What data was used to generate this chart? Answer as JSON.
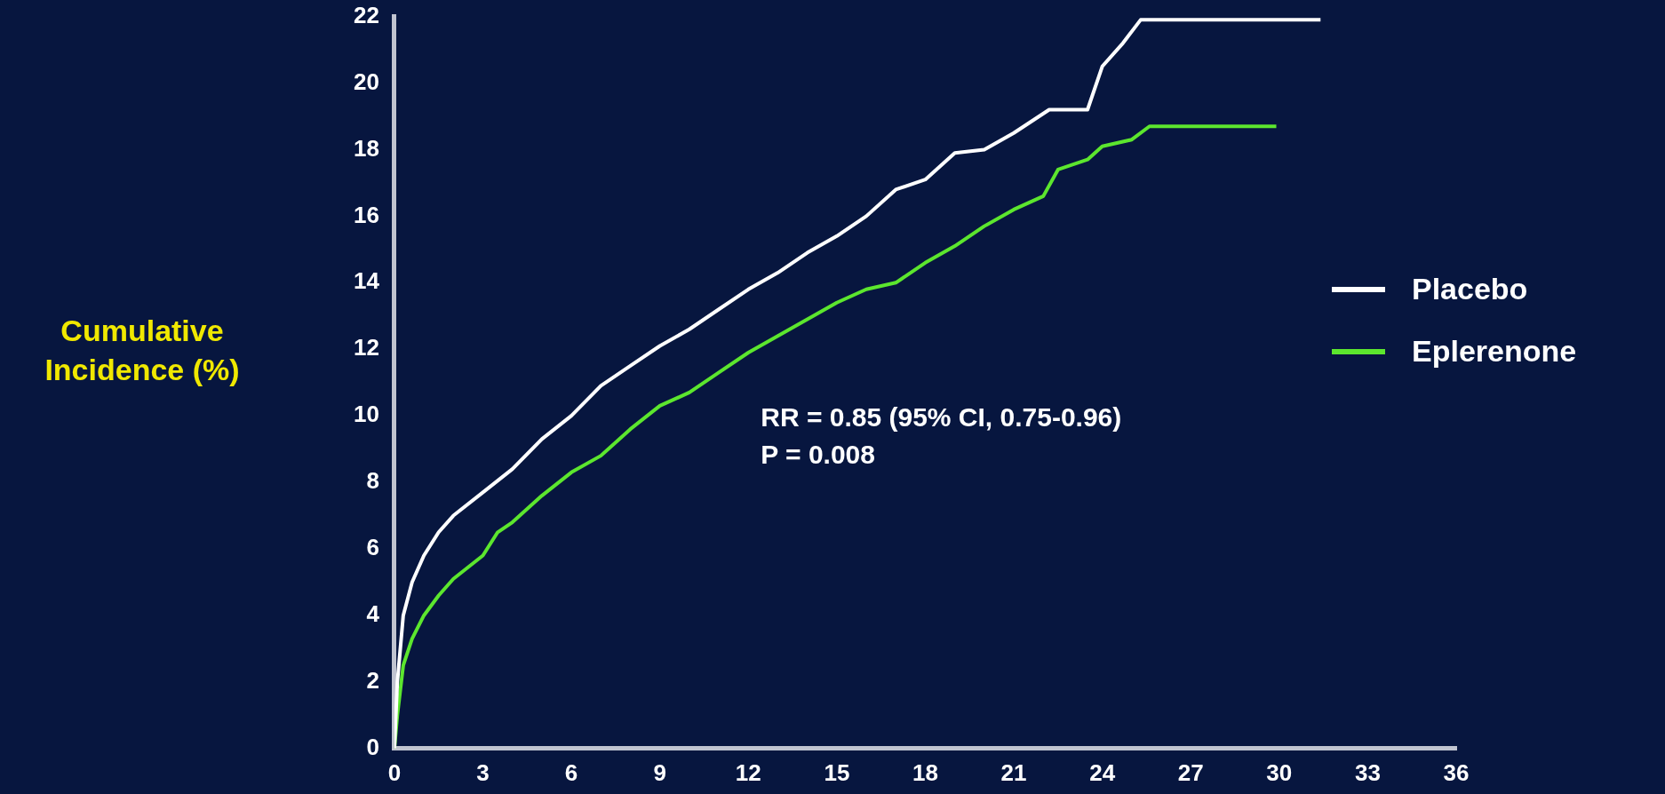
{
  "chart_data": {
    "type": "line",
    "ylabel": "Cumulative\nIncidence (%)",
    "xlim": [
      0,
      36
    ],
    "xticks": [
      0,
      3,
      6,
      9,
      12,
      15,
      18,
      21,
      24,
      27,
      30,
      33,
      36
    ],
    "ylim": [
      0,
      22
    ],
    "yticks": [
      0,
      2,
      4,
      6,
      8,
      10,
      12,
      14,
      16,
      18,
      20,
      22
    ],
    "grid": false,
    "legend": "right",
    "marker": "none",
    "line_style": "solid",
    "annotations": [
      "RR = 0.85 (95% CI, 0.75-0.96)",
      "P = 0.008"
    ],
    "series": [
      {
        "name": "Placebo",
        "color": "#ffffff",
        "x": [
          0,
          0.1,
          0.3,
          0.6,
          1,
          1.5,
          2,
          3,
          4,
          5,
          6,
          7,
          8,
          9,
          10,
          11,
          12,
          13,
          14,
          15,
          16,
          17,
          18,
          19,
          20,
          21,
          22.2,
          23.5,
          24,
          24.7,
          25.3,
          31.4
        ],
        "values": [
          0,
          2,
          4,
          5,
          5.8,
          6.5,
          7,
          7.7,
          8.4,
          9.3,
          10,
          10.9,
          11.5,
          12.1,
          12.6,
          13.2,
          13.8,
          14.3,
          14.9,
          15.4,
          16,
          16.8,
          17.1,
          17.9,
          18,
          18.5,
          19.2,
          19.2,
          20.5,
          21.2,
          21.9,
          21.9
        ]
      },
      {
        "name": "Eplerenone",
        "color": "#5ce62e",
        "x": [
          0,
          0.1,
          0.3,
          0.6,
          1,
          1.5,
          2,
          3,
          3.5,
          4,
          5,
          6,
          7,
          8,
          9,
          10,
          11,
          12,
          13,
          14,
          15,
          16,
          17,
          18,
          19,
          20,
          21,
          22,
          22.5,
          23.5,
          24,
          25,
          25.6,
          29.9
        ],
        "values": [
          0,
          1,
          2.5,
          3.3,
          4,
          4.6,
          5.1,
          5.8,
          6.5,
          6.8,
          7.6,
          8.3,
          8.8,
          9.6,
          10.3,
          10.7,
          11.3,
          11.9,
          12.4,
          12.9,
          13.4,
          13.8,
          14,
          14.6,
          15.1,
          15.7,
          16.2,
          16.6,
          17.4,
          17.7,
          18.1,
          18.3,
          18.7,
          18.7
        ]
      }
    ]
  }
}
